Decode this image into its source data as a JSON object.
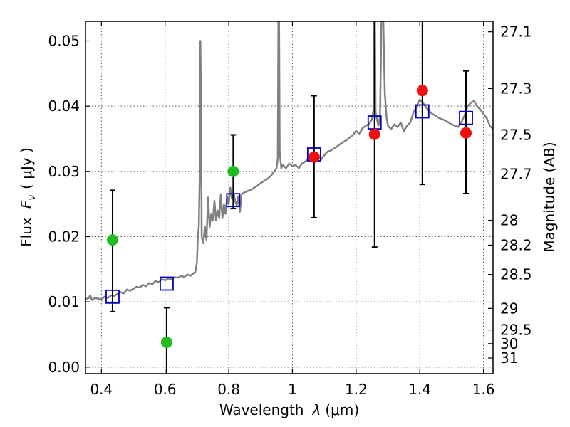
{
  "chart_data": {
    "type": "scatter",
    "xlabel_prefix": "Wavelength",
    "xlabel_symbol": "λ",
    "xlabel_unit": "(μm)",
    "ylabel_prefix": "Flux",
    "ylabel_symbol": "F",
    "ylabel_subscript": "ν",
    "ylabel_unit": "( μJy )",
    "y2label": "Magnitude (AB)",
    "xlim": [
      0.35,
      1.63
    ],
    "ylim": [
      -0.001,
      0.053
    ],
    "grid": true,
    "x_ticks": [
      0.4,
      0.6,
      0.8,
      1.0,
      1.2,
      1.4,
      1.6
    ],
    "x_tick_labels": [
      "0.4",
      "0.6",
      "0.8",
      "1",
      "1.2",
      "1.4",
      "1.6"
    ],
    "y_ticks": [
      0.0,
      0.01,
      0.02,
      0.03,
      0.04,
      0.05
    ],
    "y_tick_labels": [
      "0.00",
      "0.01",
      "0.02",
      "0.03",
      "0.04",
      "0.05"
    ],
    "y2_ticks": [
      {
        "label": "27.1",
        "flux": 0.0514
      },
      {
        "label": "27.3",
        "flux": 0.0427
      },
      {
        "label": "27.5",
        "flux": 0.0356
      },
      {
        "label": "27.7",
        "flux": 0.0296
      },
      {
        "label": "28",
        "flux": 0.0225
      },
      {
        "label": "28.2",
        "flux": 0.0187
      },
      {
        "label": "28.5",
        "flux": 0.0142
      },
      {
        "label": "29",
        "flux": 0.009
      },
      {
        "label": "29.5",
        "flux": 0.0057
      },
      {
        "label": "30",
        "flux": 0.0036
      },
      {
        "label": "31",
        "flux": 0.0014
      }
    ],
    "colors": {
      "model_spectrum": "#808080",
      "synthetic_photometry": "#0000bb",
      "green_points": "#22bb22",
      "red_points": "#ee1111",
      "error_bars": "#000000"
    },
    "model_spectrum": [
      [
        0.35,
        0.0104
      ],
      [
        0.36,
        0.0106
      ],
      [
        0.365,
        0.011
      ],
      [
        0.37,
        0.0103
      ],
      [
        0.38,
        0.0106
      ],
      [
        0.39,
        0.0105
      ],
      [
        0.4,
        0.0104
      ],
      [
        0.41,
        0.0108
      ],
      [
        0.42,
        0.0106
      ],
      [
        0.43,
        0.011
      ],
      [
        0.44,
        0.0109
      ],
      [
        0.45,
        0.0112
      ],
      [
        0.46,
        0.0115
      ],
      [
        0.47,
        0.0113
      ],
      [
        0.48,
        0.0119
      ],
      [
        0.49,
        0.0117
      ],
      [
        0.5,
        0.012
      ],
      [
        0.51,
        0.0123
      ],
      [
        0.52,
        0.0122
      ],
      [
        0.53,
        0.0126
      ],
      [
        0.54,
        0.0124
      ],
      [
        0.55,
        0.0129
      ],
      [
        0.56,
        0.0127
      ],
      [
        0.57,
        0.0132
      ],
      [
        0.58,
        0.013
      ],
      [
        0.59,
        0.0135
      ],
      [
        0.6,
        0.0133
      ],
      [
        0.61,
        0.0136
      ],
      [
        0.62,
        0.0134
      ],
      [
        0.63,
        0.0138
      ],
      [
        0.64,
        0.0137
      ],
      [
        0.65,
        0.014
      ],
      [
        0.66,
        0.0138
      ],
      [
        0.67,
        0.0142
      ],
      [
        0.68,
        0.014
      ],
      [
        0.69,
        0.0144
      ],
      [
        0.695,
        0.0146
      ],
      [
        0.7,
        0.016
      ],
      [
        0.703,
        0.02
      ],
      [
        0.706,
        0.0215
      ],
      [
        0.709,
        0.03
      ],
      [
        0.711,
        0.05
      ],
      [
        0.713,
        0.04
      ],
      [
        0.715,
        0.02
      ],
      [
        0.72,
        0.019
      ],
      [
        0.725,
        0.0215
      ],
      [
        0.73,
        0.0195
      ],
      [
        0.735,
        0.026
      ],
      [
        0.74,
        0.0215
      ],
      [
        0.745,
        0.0235
      ],
      [
        0.75,
        0.0225
      ],
      [
        0.755,
        0.0255
      ],
      [
        0.76,
        0.0225
      ],
      [
        0.765,
        0.024
      ],
      [
        0.77,
        0.0228
      ],
      [
        0.775,
        0.0265
      ],
      [
        0.78,
        0.0228
      ],
      [
        0.785,
        0.025
      ],
      [
        0.79,
        0.0235
      ],
      [
        0.795,
        0.0262
      ],
      [
        0.8,
        0.025
      ],
      [
        0.805,
        0.0275
      ],
      [
        0.81,
        0.0258
      ],
      [
        0.815,
        0.0268
      ],
      [
        0.82,
        0.0255
      ],
      [
        0.825,
        0.0248
      ],
      [
        0.83,
        0.0262
      ],
      [
        0.835,
        0.0238
      ],
      [
        0.84,
        0.0265
      ],
      [
        0.85,
        0.0268
      ],
      [
        0.86,
        0.027
      ],
      [
        0.87,
        0.0272
      ],
      [
        0.88,
        0.0275
      ],
      [
        0.89,
        0.0278
      ],
      [
        0.9,
        0.0282
      ],
      [
        0.91,
        0.0285
      ],
      [
        0.92,
        0.0288
      ],
      [
        0.93,
        0.0292
      ],
      [
        0.94,
        0.0298
      ],
      [
        0.95,
        0.0305
      ],
      [
        0.954,
        0.032
      ],
      [
        0.956,
        0.054
      ],
      [
        0.958,
        0.054
      ],
      [
        0.96,
        0.033
      ],
      [
        0.965,
        0.0305
      ],
      [
        0.97,
        0.031
      ],
      [
        0.98,
        0.0305
      ],
      [
        0.99,
        0.0312
      ],
      [
        1.0,
        0.0308
      ],
      [
        1.01,
        0.031
      ],
      [
        1.02,
        0.0305
      ],
      [
        1.03,
        0.0312
      ],
      [
        1.04,
        0.0315
      ],
      [
        1.05,
        0.032
      ],
      [
        1.06,
        0.0325
      ],
      [
        1.07,
        0.032
      ],
      [
        1.08,
        0.0322
      ],
      [
        1.09,
        0.0318
      ],
      [
        1.1,
        0.0325
      ],
      [
        1.11,
        0.033
      ],
      [
        1.12,
        0.0332
      ],
      [
        1.13,
        0.0335
      ],
      [
        1.14,
        0.0338
      ],
      [
        1.15,
        0.0342
      ],
      [
        1.16,
        0.0345
      ],
      [
        1.17,
        0.0348
      ],
      [
        1.18,
        0.0352
      ],
      [
        1.19,
        0.0356
      ],
      [
        1.2,
        0.0362
      ],
      [
        1.21,
        0.0358
      ],
      [
        1.22,
        0.0366
      ],
      [
        1.23,
        0.037
      ],
      [
        1.24,
        0.0372
      ],
      [
        1.25,
        0.038
      ],
      [
        1.255,
        0.0395
      ],
      [
        1.257,
        0.054
      ],
      [
        1.259,
        0.054
      ],
      [
        1.261,
        0.039
      ],
      [
        1.265,
        0.038
      ],
      [
        1.27,
        0.037
      ],
      [
        1.275,
        0.0385
      ],
      [
        1.28,
        0.054
      ],
      [
        1.285,
        0.054
      ],
      [
        1.29,
        0.042
      ],
      [
        1.295,
        0.0385
      ],
      [
        1.3,
        0.037
      ],
      [
        1.31,
        0.0365
      ],
      [
        1.32,
        0.0372
      ],
      [
        1.33,
        0.0368
      ],
      [
        1.34,
        0.0375
      ],
      [
        1.35,
        0.0362
      ],
      [
        1.36,
        0.037
      ],
      [
        1.37,
        0.0375
      ],
      [
        1.38,
        0.039
      ],
      [
        1.39,
        0.04
      ],
      [
        1.4,
        0.041
      ],
      [
        1.41,
        0.0405
      ],
      [
        1.42,
        0.0398
      ],
      [
        1.43,
        0.0392
      ],
      [
        1.44,
        0.0388
      ],
      [
        1.45,
        0.0385
      ],
      [
        1.46,
        0.0382
      ],
      [
        1.47,
        0.038
      ],
      [
        1.48,
        0.0378
      ],
      [
        1.49,
        0.0375
      ],
      [
        1.5,
        0.0372
      ],
      [
        1.51,
        0.037
      ],
      [
        1.52,
        0.0368
      ],
      [
        1.53,
        0.0375
      ],
      [
        1.54,
        0.0385
      ],
      [
        1.55,
        0.04
      ],
      [
        1.56,
        0.0405
      ],
      [
        1.57,
        0.0408
      ],
      [
        1.58,
        0.04
      ],
      [
        1.59,
        0.0395
      ],
      [
        1.6,
        0.0388
      ],
      [
        1.61,
        0.0382
      ],
      [
        1.62,
        0.037
      ],
      [
        1.63,
        0.0365
      ]
    ],
    "synthetic_photometry": [
      {
        "x": 0.435,
        "y": 0.0108
      },
      {
        "x": 0.605,
        "y": 0.0128
      },
      {
        "x": 0.814,
        "y": 0.0256
      },
      {
        "x": 1.068,
        "y": 0.0326
      },
      {
        "x": 1.258,
        "y": 0.0375
      },
      {
        "x": 1.408,
        "y": 0.0392
      },
      {
        "x": 1.545,
        "y": 0.0382
      }
    ],
    "green_points": [
      {
        "x": 0.435,
        "y": 0.0195,
        "err_low": 0.0085,
        "err_high": 0.0271
      },
      {
        "x": 0.605,
        "y": 0.0038,
        "err_low": -0.001,
        "err_high": 0.0091
      },
      {
        "x": 0.814,
        "y": 0.03,
        "err_low": 0.0243,
        "err_high": 0.0356
      }
    ],
    "red_points": [
      {
        "x": 1.068,
        "y": 0.0322,
        "err_low": 0.0229,
        "err_high": 0.0416
      },
      {
        "x": 1.258,
        "y": 0.0357,
        "err_low": 0.0184,
        "err_high": 0.054
      },
      {
        "x": 1.408,
        "y": 0.0424,
        "err_low": 0.028,
        "err_high": 0.054
      },
      {
        "x": 1.545,
        "y": 0.0359,
        "err_low": 0.0266,
        "err_high": 0.0454
      }
    ]
  }
}
